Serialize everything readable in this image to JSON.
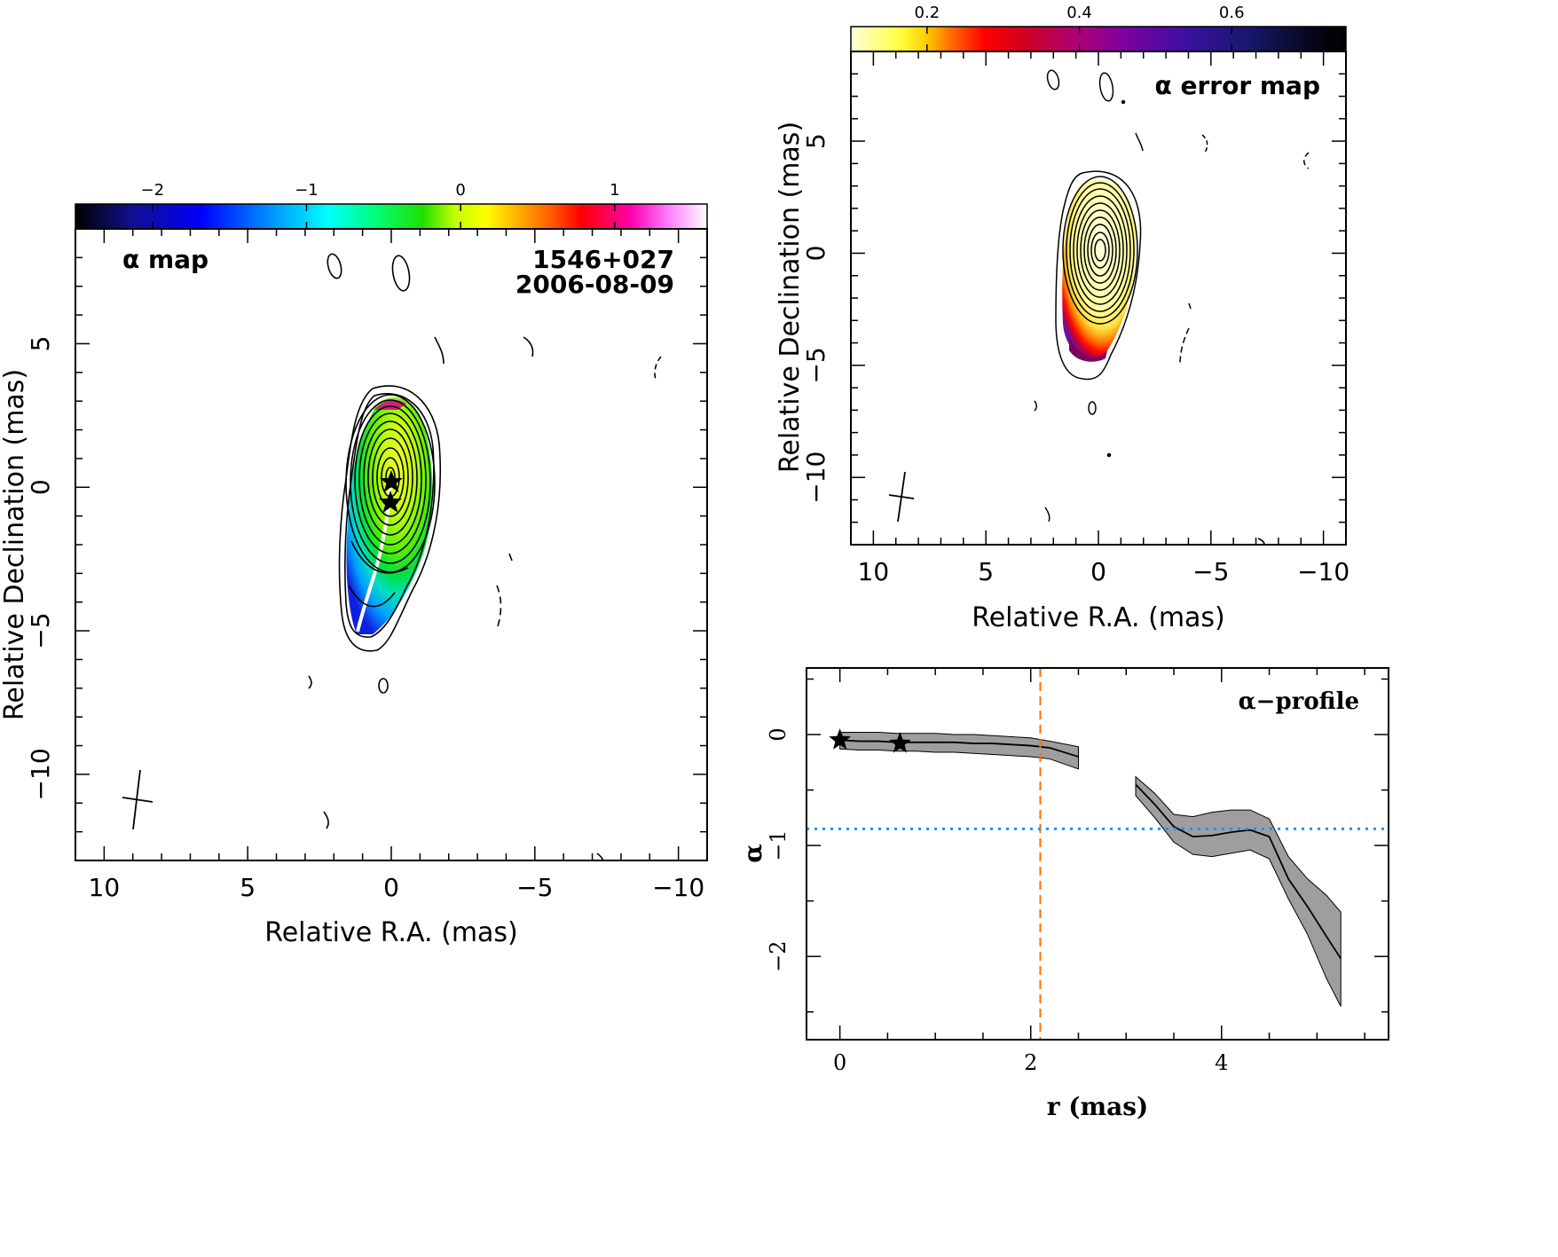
{
  "colors": {
    "alpha_colormap": [
      "#000000",
      "#0a0a90",
      "#0000ff",
      "#00a0ff",
      "#00ffff",
      "#00ff80",
      "#00e000",
      "#c0ff00",
      "#ffff00",
      "#ffa000",
      "#ff4000",
      "#ff0000",
      "#ff00a0",
      "#ff80ff",
      "#ffffff"
    ],
    "error_colormap": [
      "#ffffd0",
      "#ffff00",
      "#ff8000",
      "#ff0000",
      "#c00020",
      "#9000a0",
      "#4000a0",
      "#101070",
      "#000000"
    ],
    "profile_line": "#000000",
    "profile_band": "#9e9e9e",
    "orange_dashed": "#ff7000",
    "blue_dotted": "#1e90ff"
  },
  "alpha_map": {
    "label": "α map",
    "source": "1546+027",
    "date": "2006-08-09",
    "colorbar_ticks": [
      -2,
      -1,
      0,
      1
    ],
    "colorbar_tick_labels": [
      "−2",
      "−1",
      "0",
      "1"
    ],
    "colorbar_range": [
      -2.5,
      1.6
    ],
    "x_ticks": [
      "10",
      "5",
      "0",
      "−5",
      "−10"
    ],
    "y_ticks": [
      "5",
      "0",
      "−5",
      "−10"
    ],
    "xlabel": "Relative R.A. (mas)",
    "ylabel": "Relative Declination (mas)"
  },
  "error_map": {
    "label": "α error map",
    "colorbar_ticks": [
      0.2,
      0.4,
      0.6
    ],
    "colorbar_tick_labels": [
      "0.2",
      "0.4",
      "0.6"
    ],
    "colorbar_range": [
      0.1,
      0.75
    ],
    "x_ticks": [
      "10",
      "5",
      "0",
      "−5",
      "−10"
    ],
    "y_ticks": [
      "5",
      "0",
      "−5",
      "−10"
    ],
    "xlabel": "Relative R.A. (mas)",
    "ylabel": "Relative Declination (mas)"
  },
  "chart_data": [
    {
      "type": "heatmap",
      "title": "α map",
      "annotations": [
        "1546+027",
        "2006-08-09"
      ],
      "xlabel": "Relative R.A. (mas)",
      "ylabel": "Relative Declination (mas)",
      "xlim": [
        11,
        -11
      ],
      "ylim": [
        -13,
        9
      ],
      "colorbar": {
        "range": [
          -2.5,
          1.6
        ],
        "ticks": [
          -2,
          -1,
          0,
          1
        ]
      },
      "markers": [
        {
          "x": -0.1,
          "y": 0.2
        },
        {
          "x": 0.0,
          "y": -0.5
        }
      ]
    },
    {
      "type": "heatmap",
      "title": "α error map",
      "xlabel": "Relative R.A. (mas)",
      "ylabel": "Relative Declination (mas)",
      "xlim": [
        11,
        -11
      ],
      "ylim": [
        -13,
        9
      ],
      "colorbar": {
        "range": [
          0.1,
          0.75
        ],
        "ticks": [
          0.2,
          0.4,
          0.6
        ]
      }
    },
    {
      "type": "line",
      "title": "α−profile",
      "xlabel": "r (mas)",
      "ylabel": "α",
      "xlim": [
        -0.35,
        5.75
      ],
      "ylim": [
        -2.75,
        0.6
      ],
      "x_ticks": [
        0,
        2,
        4
      ],
      "y_ticks": [
        0,
        -1,
        -2
      ],
      "x_tick_labels": [
        "0",
        "2",
        "4"
      ],
      "y_tick_labels": [
        "0",
        "−1",
        "−2"
      ],
      "series": [
        {
          "x": [
            0.0,
            0.2,
            0.4,
            0.6,
            0.8,
            1.0,
            1.2,
            1.4,
            1.6,
            1.8,
            2.0,
            2.2,
            2.5
          ],
          "y": [
            -0.05,
            -0.06,
            -0.06,
            -0.07,
            -0.07,
            -0.07,
            -0.07,
            -0.08,
            -0.08,
            -0.09,
            -0.1,
            -0.12,
            -0.2
          ],
          "upper": [
            0.02,
            0.02,
            0.02,
            0.01,
            0.01,
            0.01,
            0.0,
            0.0,
            -0.01,
            -0.02,
            -0.03,
            -0.06,
            -0.11
          ],
          "lower": [
            -0.13,
            -0.14,
            -0.14,
            -0.15,
            -0.15,
            -0.16,
            -0.16,
            -0.17,
            -0.18,
            -0.19,
            -0.2,
            -0.22,
            -0.31
          ]
        },
        {
          "x": [
            3.1,
            3.3,
            3.5,
            3.7,
            3.9,
            4.1,
            4.3,
            4.5,
            4.7,
            4.9,
            5.1,
            5.25
          ],
          "y": [
            -0.45,
            -0.63,
            -0.83,
            -0.92,
            -0.91,
            -0.88,
            -0.86,
            -0.92,
            -1.3,
            -1.55,
            -1.82,
            -2.02
          ],
          "upper": [
            -0.38,
            -0.53,
            -0.72,
            -0.74,
            -0.7,
            -0.68,
            -0.68,
            -0.76,
            -1.1,
            -1.3,
            -1.45,
            -1.6
          ],
          "lower": [
            -0.55,
            -0.75,
            -0.97,
            -1.08,
            -1.1,
            -1.07,
            -1.04,
            -1.12,
            -1.48,
            -1.8,
            -2.2,
            -2.45
          ]
        }
      ],
      "markers": [
        {
          "x": 0.0,
          "y": -0.05
        },
        {
          "x": 0.63,
          "y": -0.08
        }
      ],
      "reference_lines": [
        {
          "orientation": "vertical",
          "value": 2.1,
          "style": "dashed"
        },
        {
          "orientation": "horizontal",
          "value": -0.85,
          "style": "dotted"
        }
      ]
    }
  ],
  "profile": {
    "title": "α−profile",
    "xlabel": "r (mas)",
    "ylabel": "α"
  }
}
